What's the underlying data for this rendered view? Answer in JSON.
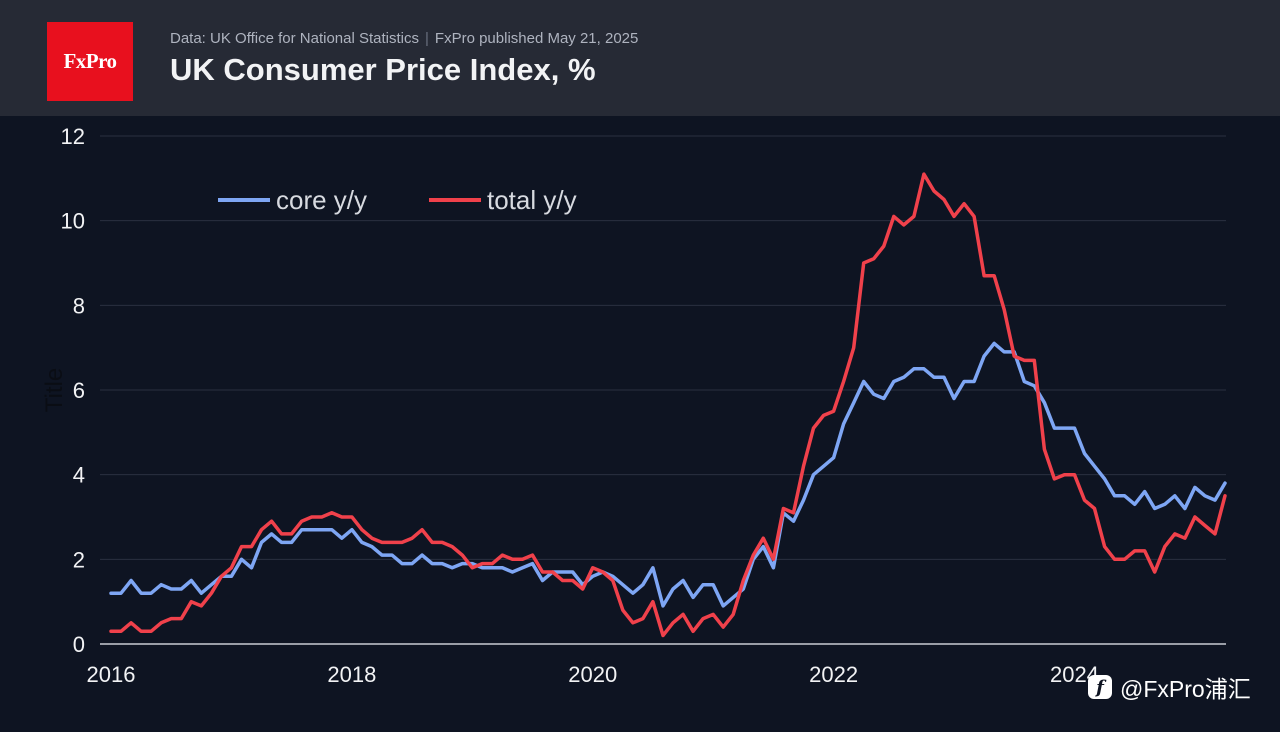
{
  "header": {
    "logo_text": "FxPro",
    "source": "Data: UK Office for National Statistics",
    "published": "FxPro published May 21, 2025",
    "title": "UK Consumer Price Index, %"
  },
  "watermark": {
    "icon": "weibo-f-icon",
    "icon_glyph": "f",
    "text": "@FxPro浦汇"
  },
  "colors": {
    "background": "#0e1422",
    "header_bg": "#262a35",
    "logo_bg": "#e8101e",
    "core": "#7ea6f4",
    "total": "#f0414b",
    "grid": "#2a3040"
  },
  "chart_data": {
    "type": "line",
    "ylabel": "Title",
    "ylim": [
      0,
      12
    ],
    "yticks": [
      "0",
      "2",
      "4",
      "6",
      "8",
      "10",
      "12"
    ],
    "xticks": [
      "2016",
      "2018",
      "2020",
      "2022",
      "2024"
    ],
    "legend_position": "top-left",
    "x_start": "2016-01",
    "x_end": "2025-04",
    "series": [
      {
        "name": "core y/y",
        "color": "#7ea6f4",
        "values": [
          1.2,
          1.2,
          1.5,
          1.2,
          1.2,
          1.4,
          1.3,
          1.3,
          1.5,
          1.2,
          1.4,
          1.6,
          1.6,
          2.0,
          1.8,
          2.4,
          2.6,
          2.4,
          2.4,
          2.7,
          2.7,
          2.7,
          2.7,
          2.5,
          2.7,
          2.4,
          2.3,
          2.1,
          2.1,
          1.9,
          1.9,
          2.1,
          1.9,
          1.9,
          1.8,
          1.9,
          1.9,
          1.8,
          1.8,
          1.8,
          1.7,
          1.8,
          1.9,
          1.5,
          1.7,
          1.7,
          1.7,
          1.4,
          1.6,
          1.7,
          1.6,
          1.4,
          1.2,
          1.4,
          1.8,
          0.9,
          1.3,
          1.5,
          1.1,
          1.4,
          1.4,
          0.9,
          1.1,
          1.3,
          2.0,
          2.3,
          1.8,
          3.1,
          2.9,
          3.4,
          4.0,
          4.2,
          4.4,
          5.2,
          5.7,
          6.2,
          5.9,
          5.8,
          6.2,
          6.3,
          6.5,
          6.5,
          6.3,
          6.3,
          5.8,
          6.2,
          6.2,
          6.8,
          7.1,
          6.9,
          6.9,
          6.2,
          6.1,
          5.7,
          5.1,
          5.1,
          5.1,
          4.5,
          4.2,
          3.9,
          3.5,
          3.5,
          3.3,
          3.6,
          3.2,
          3.3,
          3.5,
          3.2,
          3.7,
          3.5,
          3.4,
          3.8
        ]
      },
      {
        "name": "total y/y",
        "color": "#f0414b",
        "values": [
          0.3,
          0.3,
          0.5,
          0.3,
          0.3,
          0.5,
          0.6,
          0.6,
          1.0,
          0.9,
          1.2,
          1.6,
          1.8,
          2.3,
          2.3,
          2.7,
          2.9,
          2.6,
          2.6,
          2.9,
          3.0,
          3.0,
          3.1,
          3.0,
          3.0,
          2.7,
          2.5,
          2.4,
          2.4,
          2.4,
          2.5,
          2.7,
          2.4,
          2.4,
          2.3,
          2.1,
          1.8,
          1.9,
          1.9,
          2.1,
          2.0,
          2.0,
          2.1,
          1.7,
          1.7,
          1.5,
          1.5,
          1.3,
          1.8,
          1.7,
          1.5,
          0.8,
          0.5,
          0.6,
          1.0,
          0.2,
          0.5,
          0.7,
          0.3,
          0.6,
          0.7,
          0.4,
          0.7,
          1.5,
          2.1,
          2.5,
          2.0,
          3.2,
          3.1,
          4.2,
          5.1,
          5.4,
          5.5,
          6.2,
          7.0,
          9.0,
          9.1,
          9.4,
          10.1,
          9.9,
          10.1,
          11.1,
          10.7,
          10.5,
          10.1,
          10.4,
          10.1,
          8.7,
          8.7,
          7.9,
          6.8,
          6.7,
          6.7,
          4.6,
          3.9,
          4.0,
          4.0,
          3.4,
          3.2,
          2.3,
          2.0,
          2.0,
          2.2,
          2.2,
          1.7,
          2.3,
          2.6,
          2.5,
          3.0,
          2.8,
          2.6,
          3.5
        ]
      }
    ]
  }
}
